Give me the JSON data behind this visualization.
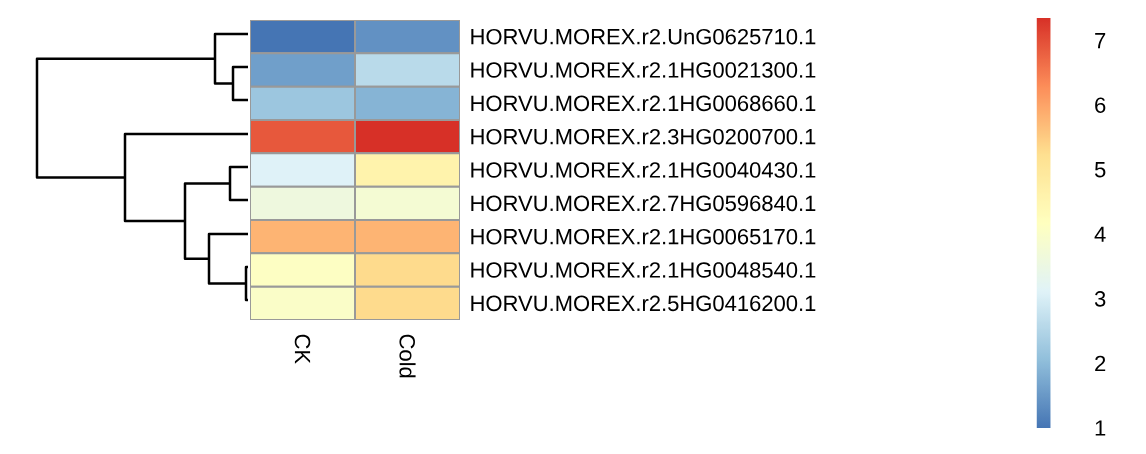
{
  "chart_data": {
    "type": "heatmap",
    "categories": [
      "CK",
      "Cold"
    ],
    "y_categories": [
      "HORVU.MOREX.r2.UnG0625710.1",
      "HORVU.MOREX.r2.1HG0021300.1",
      "HORVU.MOREX.r2.1HG0068660.1",
      "HORVU.MOREX.r2.3HG0200700.1",
      "HORVU.MOREX.r2.1HG0040430.1",
      "HORVU.MOREX.r2.7HG0596840.1",
      "HORVU.MOREX.r2.1HG0065170.1",
      "HORVU.MOREX.r2.1HG0048540.1",
      "HORVU.MOREX.r2.5HG0416200.1"
    ],
    "cells": [
      [
        1.0,
        1.4
      ],
      [
        1.6,
        2.6
      ],
      [
        2.2,
        1.9
      ],
      [
        6.9,
        7.35
      ],
      [
        3.1,
        4.6
      ],
      [
        3.6,
        3.8
      ],
      [
        5.8,
        5.8
      ],
      [
        4.1,
        5.3
      ],
      [
        4.0,
        5.3
      ]
    ],
    "clim": [
      1,
      7.35
    ],
    "cticks": [
      1,
      2,
      3,
      4,
      5,
      6,
      7
    ]
  }
}
